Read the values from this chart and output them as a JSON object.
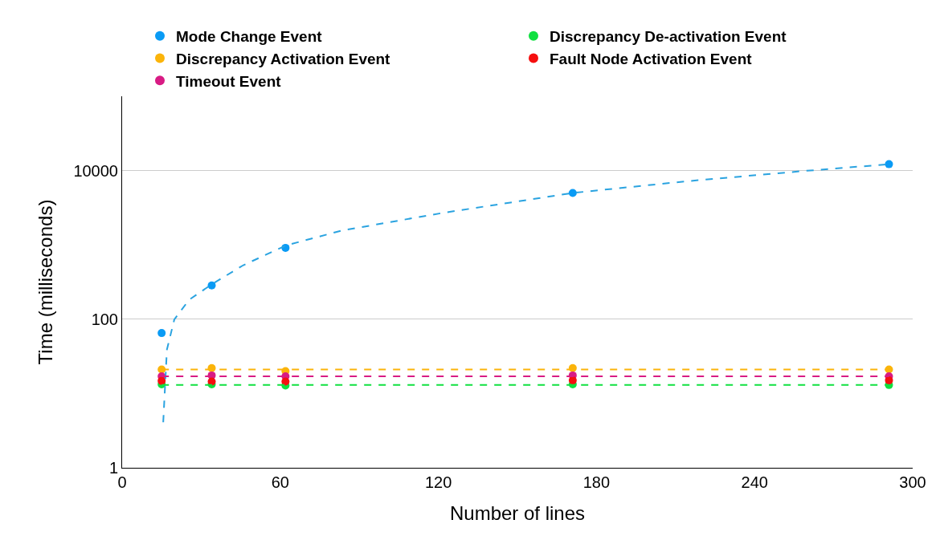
{
  "chart_data": {
    "type": "scatter",
    "xlabel": "Number of lines",
    "ylabel": "Time (milliseconds)",
    "x": [
      15,
      34,
      62,
      171,
      291
    ],
    "log": "y",
    "xlim": [
      0,
      300
    ],
    "xticks": [
      0,
      60,
      120,
      180,
      240,
      300
    ],
    "ylim": [
      1,
      100000
    ],
    "yticks": [
      1,
      100,
      10000
    ],
    "grid": "y",
    "legend": "top",
    "marker": "circle",
    "series": [
      {
        "name": "Mode Change Event",
        "color": "#0a9bf5",
        "values": [
          65,
          284,
          912,
          5000,
          12200
        ]
      },
      {
        "name": "Discrepancy Activation Event",
        "color": "#fbb40a",
        "values": [
          21,
          22,
          20,
          22,
          21
        ]
      },
      {
        "name": "Timeout Event",
        "color": "#d81b84",
        "values": [
          17,
          17.5,
          17,
          17.5,
          17
        ]
      },
      {
        "name": "Discrepancy De-activation Event",
        "color": "#10e040",
        "values": [
          13.3,
          13.3,
          12.8,
          13.3,
          13
        ]
      },
      {
        "name": "Fault Node Activation Event",
        "color": "#f50f0f",
        "values": [
          14.8,
          14.5,
          14.5,
          15,
          15
        ]
      },
      {
        "type": "line",
        "color": "#2aa3e0",
        "line_style": "dashed",
        "marker": "none",
        "x": [
          15.6,
          17,
          19.8,
          25.4,
          34.2,
          46,
          62.3,
          83.4,
          121,
          171,
          214.5,
          257.6,
          291.3
        ],
        "values": [
          4.1,
          39,
          99,
          182,
          298,
          533,
          986,
          1560,
          2670,
          5000,
          7200,
          9800,
          12200
        ]
      },
      {
        "type": "line",
        "color": "#fbb40a",
        "line_style": "dashed",
        "marker": "none",
        "x": [
          15,
          291
        ],
        "values": [
          21,
          21
        ]
      },
      {
        "type": "line",
        "color": "#d81b84",
        "line_style": "dashed",
        "marker": "none",
        "x": [
          15,
          291
        ],
        "values": [
          17,
          17
        ]
      },
      {
        "type": "line",
        "color": "#10e040",
        "line_style": "dashed",
        "marker": "none",
        "x": [
          15,
          291
        ],
        "values": [
          13,
          13
        ]
      }
    ]
  }
}
